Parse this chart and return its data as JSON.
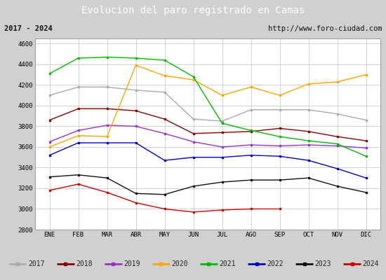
{
  "title": "Evolucion del paro registrado en Camas",
  "subtitle_left": "2017 - 2024",
  "subtitle_right": "http://www.foro-ciudad.com",
  "x_labels": [
    "ENE",
    "FEB",
    "MAR",
    "ABR",
    "MAY",
    "JUN",
    "JUL",
    "AGO",
    "SEP",
    "OCT",
    "NOV",
    "DIC"
  ],
  "ylim": [
    2800,
    4650
  ],
  "yticks": [
    2800,
    3000,
    3200,
    3400,
    3600,
    3800,
    4000,
    4200,
    4400,
    4600
  ],
  "series": {
    "2017": {
      "color": "#aaaaaa",
      "data": [
        4100,
        4180,
        4180,
        4150,
        4130,
        3870,
        3850,
        3960,
        3960,
        3960,
        3920,
        3860
      ]
    },
    "2018": {
      "color": "#8b0000",
      "data": [
        3860,
        3970,
        3970,
        3950,
        3870,
        3730,
        3740,
        3750,
        3780,
        3750,
        3700,
        3660
      ]
    },
    "2019": {
      "color": "#9932cc",
      "data": [
        3650,
        3760,
        3810,
        3800,
        3730,
        3650,
        3600,
        3620,
        3610,
        3620,
        3610,
        3590
      ]
    },
    "2020": {
      "color": "#ffa500",
      "data": [
        3600,
        3710,
        3700,
        4390,
        4290,
        4250,
        4100,
        4180,
        4100,
        4210,
        4230,
        4300
      ]
    },
    "2021": {
      "color": "#00bb00",
      "data": [
        4310,
        4460,
        4470,
        4460,
        4440,
        4280,
        3830,
        3760,
        3700,
        3660,
        3630,
        3510
      ]
    },
    "2022": {
      "color": "#0000cc",
      "data": [
        3520,
        3640,
        3640,
        3640,
        3470,
        3500,
        3500,
        3520,
        3510,
        3470,
        3390,
        3300
      ]
    },
    "2023": {
      "color": "#111111",
      "data": [
        3310,
        3330,
        3300,
        3150,
        3140,
        3220,
        3260,
        3280,
        3280,
        3300,
        3220,
        3160
      ]
    },
    "2024": {
      "color": "#cc0000",
      "data": [
        3180,
        3240,
        3160,
        3060,
        3000,
        2970,
        2990,
        3000,
        3000,
        null,
        null,
        null
      ]
    }
  },
  "background_color": "#d0d0d0",
  "plot_bg_color": "#ffffff",
  "title_bg_color": "#5b8dd9",
  "title_text_color": "#ffffff",
  "subtitle_bg_color": "#e8e8e8",
  "grid_color": "#cccccc",
  "legend_bg_color": "#e8e8e8"
}
